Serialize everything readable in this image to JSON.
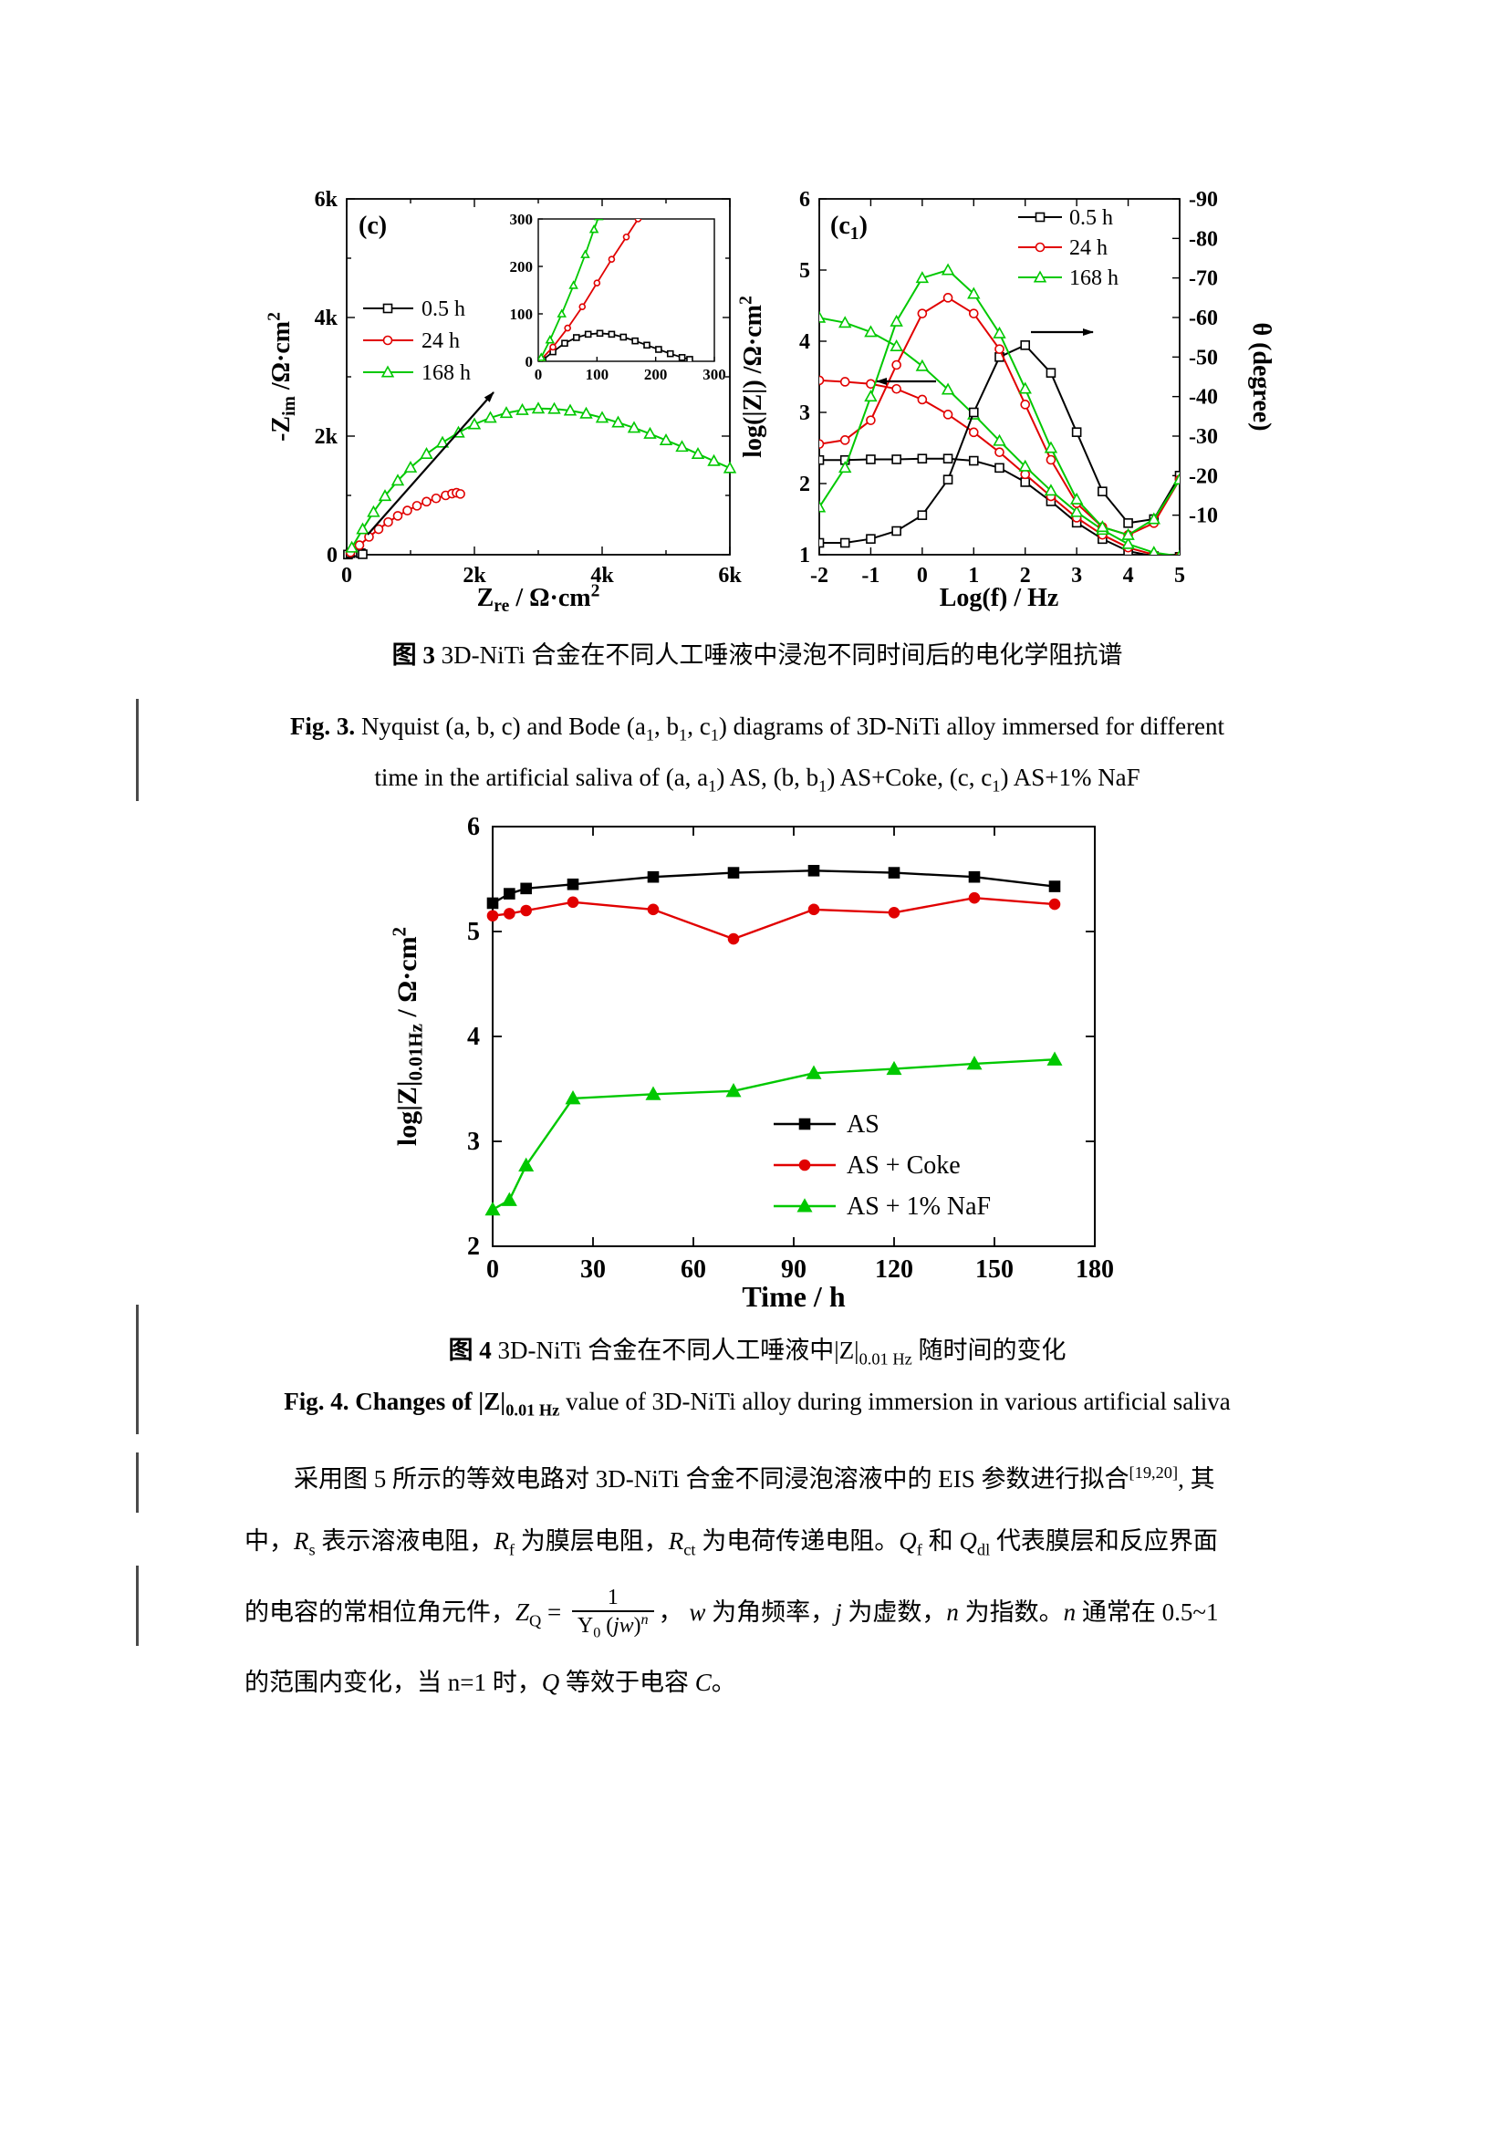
{
  "figure3": {
    "caption_zh": [
      {
        "t": "图 3",
        "b": true
      },
      {
        "t": " 3D-NiTi 合金在不同人工唾液中浸泡不同时间后的电化学阻抗谱"
      }
    ],
    "caption_en_line1": [
      {
        "t": "Fig. 3.",
        "b": true
      },
      {
        "t": " Nyquist (a, b, c) and Bode (a"
      },
      {
        "t": "1",
        "sub": true
      },
      {
        "t": ", b"
      },
      {
        "t": "1",
        "sub": true
      },
      {
        "t": ", c"
      },
      {
        "t": "1",
        "sub": true
      },
      {
        "t": ") diagrams of 3D-NiTi alloy immersed for different"
      }
    ],
    "caption_en_line2": [
      {
        "t": "time in the artificial saliva of (a, a"
      },
      {
        "t": "1",
        "sub": true
      },
      {
        "t": ") AS, (b, b"
      },
      {
        "t": "1",
        "sub": true
      },
      {
        "t": ") AS+Coke, (c, c"
      },
      {
        "t": "1",
        "sub": true
      },
      {
        "t": ") AS+1% NaF"
      }
    ]
  },
  "figure4": {
    "caption_zh": [
      {
        "t": "图 4",
        "b": true
      },
      {
        "t": " 3D-NiTi 合金在不同人工唾液中|Z|"
      },
      {
        "t": "0.01 Hz",
        "sub": true
      },
      {
        "t": " 随时间的变化"
      }
    ],
    "caption_en": [
      {
        "t": "Fig. 4. Changes of ",
        "b": true
      },
      {
        "t": "|Z|",
        "b": true
      },
      {
        "t": "0.01 Hz",
        "sub": true,
        "b": true
      },
      {
        "t": " value of 3D-NiTi alloy during immersion in various artificial saliva"
      }
    ]
  },
  "paragraph": {
    "lines": [
      [
        {
          "t": "采用图 5 所示的等效电路对 3D-NiTi 合金不同浸泡溶液中的 EIS 参数进行拟合"
        },
        {
          "t": "[19,20]",
          "sup": true
        },
        {
          "t": ", 其"
        }
      ],
      [
        {
          "t": "中，"
        },
        {
          "t": "R",
          "i": true
        },
        {
          "t": "s",
          "sub": true
        },
        {
          "t": " 表示溶液电阻，"
        },
        {
          "t": "R",
          "i": true
        },
        {
          "t": "f",
          "sub": true
        },
        {
          "t": " 为膜层电阻，"
        },
        {
          "t": "R",
          "i": true
        },
        {
          "t": "ct",
          "sub": true
        },
        {
          "t": " 为电荷传递电阻。"
        },
        {
          "t": "Q",
          "i": true
        },
        {
          "t": "f",
          "sub": true
        },
        {
          "t": " 和 "
        },
        {
          "t": "Q",
          "i": true
        },
        {
          "t": "dl",
          "sub": true
        },
        {
          "t": " 代表膜层和反应界面"
        }
      ],
      [
        {
          "t": "的电容的常相位角元件，"
        },
        {
          "t": "Z",
          "i": true
        },
        {
          "t": "Q",
          "sub": true
        },
        {
          "t": " = "
        },
        {
          "frac": {
            "num": [
              {
                "t": "1"
              }
            ],
            "den": [
              {
                "t": "Y"
              },
              {
                "t": "0",
                "sub": true
              },
              {
                "t": " ("
              },
              {
                "t": "jw",
                "i": true
              },
              {
                "t": ")"
              },
              {
                "t": "n",
                "sup": true,
                "i": true
              }
            ]
          }
        },
        {
          "t": "， "
        },
        {
          "t": "w",
          "i": true
        },
        {
          "t": " 为角频率，"
        },
        {
          "t": "j",
          "i": true
        },
        {
          "t": " 为虚数，"
        },
        {
          "t": "n",
          "i": true
        },
        {
          "t": " 为指数。"
        },
        {
          "t": "n",
          "i": true
        },
        {
          "t": " 通常在 0.5~1"
        }
      ],
      [
        {
          "t": "的范围内变化，当 n=1 时，"
        },
        {
          "t": "Q",
          "i": true
        },
        {
          "t": " 等效于电容 "
        },
        {
          "t": "C",
          "i": true
        },
        {
          "t": "。"
        }
      ]
    ]
  },
  "chart_data": [
    {
      "type": "scatter",
      "panel_label_parts": [
        {
          "t": "(c)"
        }
      ],
      "xlabel_parts": [
        {
          "t": "Z"
        },
        {
          "t": "re",
          "sub": true
        },
        {
          "t": " / Ω·cm"
        },
        {
          "t": "2",
          "sup": true
        }
      ],
      "ylabel_parts": [
        {
          "t": "-Z"
        },
        {
          "t": "im",
          "sub": true
        },
        {
          "t": " /Ω·cm"
        },
        {
          "t": "2",
          "sup": true
        }
      ],
      "xlim": [
        0,
        6000
      ],
      "ylim": [
        0,
        6000
      ],
      "xticks": [
        0,
        2000,
        4000,
        6000
      ],
      "xtick_labels": [
        "0",
        "2k",
        "4k",
        "6k"
      ],
      "xticks_minor": [
        1000,
        3000,
        5000
      ],
      "yticks": [
        0,
        2000,
        4000,
        6000
      ],
      "ytick_labels": [
        "0",
        "2k",
        "4k",
        "6k"
      ],
      "yticks_minor": [
        1000,
        3000,
        5000
      ],
      "legend": [
        {
          "label": "0.5 h",
          "color": "#000000",
          "marker": "square"
        },
        {
          "label": "24 h",
          "color": "#e10000",
          "marker": "circle"
        },
        {
          "label": "168 h",
          "color": "#00c800",
          "marker": "triangle"
        }
      ],
      "series": [
        {
          "name": "0.5 h",
          "color": "#000000",
          "marker": "square",
          "points": [
            [
              20,
              3
            ],
            [
              60,
              25
            ],
            [
              100,
              48
            ],
            [
              140,
              57
            ],
            [
              180,
              48
            ],
            [
              220,
              25
            ],
            [
              250,
              8
            ]
          ]
        },
        {
          "name": "24 h",
          "color": "#e10000",
          "marker": "circle",
          "points": [
            [
              60,
              40
            ],
            [
              200,
              160
            ],
            [
              350,
              300
            ],
            [
              500,
              430
            ],
            [
              650,
              550
            ],
            [
              800,
              655
            ],
            [
              950,
              745
            ],
            [
              1100,
              825
            ],
            [
              1250,
              895
            ],
            [
              1400,
              950
            ],
            [
              1550,
              1000
            ],
            [
              1650,
              1030
            ],
            [
              1720,
              1045
            ],
            [
              1780,
              1025
            ]
          ]
        },
        {
          "name": "168 h",
          "color": "#00c800",
          "marker": "triangle",
          "points": [
            [
              80,
              120
            ],
            [
              250,
              430
            ],
            [
              420,
              720
            ],
            [
              600,
              990
            ],
            [
              800,
              1250
            ],
            [
              1000,
              1470
            ],
            [
              1250,
              1700
            ],
            [
              1500,
              1890
            ],
            [
              1750,
              2060
            ],
            [
              2000,
              2200
            ],
            [
              2250,
              2310
            ],
            [
              2500,
              2390
            ],
            [
              2750,
              2440
            ],
            [
              3000,
              2465
            ],
            [
              3250,
              2460
            ],
            [
              3500,
              2430
            ],
            [
              3750,
              2380
            ],
            [
              4000,
              2310
            ],
            [
              4250,
              2230
            ],
            [
              4500,
              2140
            ],
            [
              4750,
              2040
            ],
            [
              5000,
              1930
            ],
            [
              5250,
              1820
            ],
            [
              5500,
              1700
            ],
            [
              5750,
              1580
            ],
            [
              6000,
              1460
            ]
          ]
        }
      ],
      "inset": {
        "xlim": [
          0,
          300
        ],
        "ylim": [
          0,
          300
        ],
        "xticks": [
          0,
          100,
          200,
          300
        ],
        "yticks": [
          0,
          100,
          200,
          300
        ],
        "series": [
          {
            "name": "0.5 h",
            "color": "#000000",
            "marker": "square",
            "points": [
              [
                8,
                3
              ],
              [
                25,
                20
              ],
              [
                45,
                38
              ],
              [
                65,
                50
              ],
              [
                85,
                57
              ],
              [
                105,
                59
              ],
              [
                125,
                57
              ],
              [
                145,
                51
              ],
              [
                165,
                43
              ],
              [
                185,
                34
              ],
              [
                205,
                25
              ],
              [
                225,
                16
              ],
              [
                245,
                8
              ],
              [
                258,
                4
              ]
            ]
          },
          {
            "name": "24 h",
            "color": "#e10000",
            "marker": "circle",
            "points": [
              [
                5,
                4
              ],
              [
                25,
                30
              ],
              [
                50,
                70
              ],
              [
                75,
                115
              ],
              [
                100,
                165
              ],
              [
                125,
                215
              ],
              [
                150,
                262
              ],
              [
                170,
                300
              ]
            ]
          },
          {
            "name": "168 h",
            "color": "#00c800",
            "marker": "triangle",
            "points": [
              [
                5,
                8
              ],
              [
                20,
                45
              ],
              [
                40,
                100
              ],
              [
                60,
                160
              ],
              [
                80,
                225
              ],
              [
                95,
                278
              ],
              [
                103,
                305
              ]
            ]
          }
        ]
      }
    },
    {
      "type": "line",
      "panel_label_parts": [
        {
          "t": "(c"
        },
        {
          "t": "1",
          "sub": true
        },
        {
          "t": ")"
        }
      ],
      "xlabel_parts": [
        {
          "t": "Log(f) / Hz"
        }
      ],
      "ylabel_left_parts": [
        {
          "t": "log(|Z|) /Ω·cm"
        },
        {
          "t": "2",
          "sup": true
        }
      ],
      "ylabel_right_parts": [
        {
          "t": "θ (degree)"
        }
      ],
      "xlim": [
        -2,
        5
      ],
      "ylim_left": [
        1,
        6
      ],
      "ylim_right": [
        -90,
        0
      ],
      "xticks": [
        -2,
        -1,
        0,
        1,
        2,
        3,
        4,
        5
      ],
      "yticks_left": [
        1,
        2,
        3,
        4,
        5,
        6
      ],
      "yticks_right": [
        -90,
        -80,
        -70,
        -60,
        -50,
        -40,
        -30,
        -20,
        -10
      ],
      "legend": [
        {
          "label": "0.5 h",
          "color": "#000000",
          "marker": "square"
        },
        {
          "label": "24 h",
          "color": "#e10000",
          "marker": "circle"
        },
        {
          "label": "168 h",
          "color": "#00c800",
          "marker": "triangle"
        }
      ],
      "x": [
        -2,
        -1.5,
        -1,
        -0.5,
        0,
        0.5,
        1,
        1.5,
        2,
        2.5,
        3,
        3.5,
        4,
        4.5,
        5
      ],
      "impedance_series": [
        {
          "name": "0.5 h",
          "color": "#000000",
          "marker": "square",
          "values": [
            2.33,
            2.33,
            2.34,
            2.34,
            2.35,
            2.35,
            2.32,
            2.22,
            2.02,
            1.75,
            1.45,
            1.22,
            1.05,
            0.98,
            0.97
          ]
        },
        {
          "name": "24 h",
          "color": "#e10000",
          "marker": "circle",
          "values": [
            3.45,
            3.43,
            3.4,
            3.33,
            3.18,
            2.97,
            2.72,
            2.44,
            2.13,
            1.82,
            1.52,
            1.28,
            1.1,
            1.0,
            0.97
          ]
        },
        {
          "name": "168 h",
          "color": "#00c800",
          "marker": "triangle",
          "values": [
            4.33,
            4.26,
            4.13,
            3.93,
            3.65,
            3.32,
            2.97,
            2.6,
            2.24,
            1.9,
            1.6,
            1.35,
            1.15,
            1.03,
            0.98
          ]
        }
      ],
      "phase_series": [
        {
          "name": "0.5 h",
          "color": "#000000",
          "marker": "square",
          "values_deg": [
            -3,
            -3,
            -4,
            -6,
            -10,
            -19,
            -36,
            -50,
            -53,
            -46,
            -31,
            -16,
            -8,
            -9,
            -20
          ]
        },
        {
          "name": "24 h",
          "color": "#e10000",
          "marker": "circle",
          "values_deg": [
            -28,
            -29,
            -34,
            -48,
            -61,
            -65,
            -61,
            -52,
            -38,
            -24,
            -13,
            -7,
            -5,
            -8,
            -19
          ]
        },
        {
          "name": "168 h",
          "color": "#00c800",
          "marker": "triangle",
          "values_deg": [
            -12,
            -22,
            -40,
            -59,
            -70,
            -72,
            -66,
            -56,
            -42,
            -27,
            -14,
            -7,
            -5,
            -9,
            -19
          ]
        }
      ]
    },
    {
      "type": "line",
      "xlabel_parts": [
        {
          "t": "Time / h"
        }
      ],
      "ylabel_parts": [
        {
          "t": "log|Z|"
        },
        {
          "t": "0.01Hz",
          "sub": true
        },
        {
          "t": " / Ω·cm"
        },
        {
          "t": "2",
          "sup": true
        }
      ],
      "xlim": [
        0,
        180
      ],
      "ylim": [
        2,
        6
      ],
      "xticks": [
        0,
        30,
        60,
        90,
        120,
        150,
        180
      ],
      "yticks": [
        2,
        3,
        4,
        5,
        6
      ],
      "x": [
        0,
        5,
        10,
        24,
        48,
        72,
        96,
        120,
        144,
        168
      ],
      "series": [
        {
          "name": "AS",
          "color": "#000000",
          "marker": "square",
          "values": [
            5.27,
            5.36,
            5.41,
            5.45,
            5.52,
            5.56,
            5.58,
            5.56,
            5.52,
            5.43
          ]
        },
        {
          "name": "AS + Coke",
          "color": "#e10000",
          "marker": "circle",
          "values": [
            5.15,
            5.17,
            5.2,
            5.28,
            5.21,
            4.93,
            5.21,
            5.18,
            5.32,
            5.26
          ]
        },
        {
          "name": "AS + 1% NaF",
          "color": "#00c800",
          "marker": "triangle",
          "values": [
            2.35,
            2.44,
            2.77,
            3.41,
            3.45,
            3.48,
            3.65,
            3.69,
            3.74,
            3.78
          ]
        }
      ],
      "legend": [
        {
          "label": "AS",
          "color": "#000000",
          "marker": "square"
        },
        {
          "label": "AS + Coke",
          "color": "#e10000",
          "marker": "circle"
        },
        {
          "label": "AS + 1% NaF",
          "color": "#00c800",
          "marker": "triangle"
        }
      ]
    }
  ]
}
